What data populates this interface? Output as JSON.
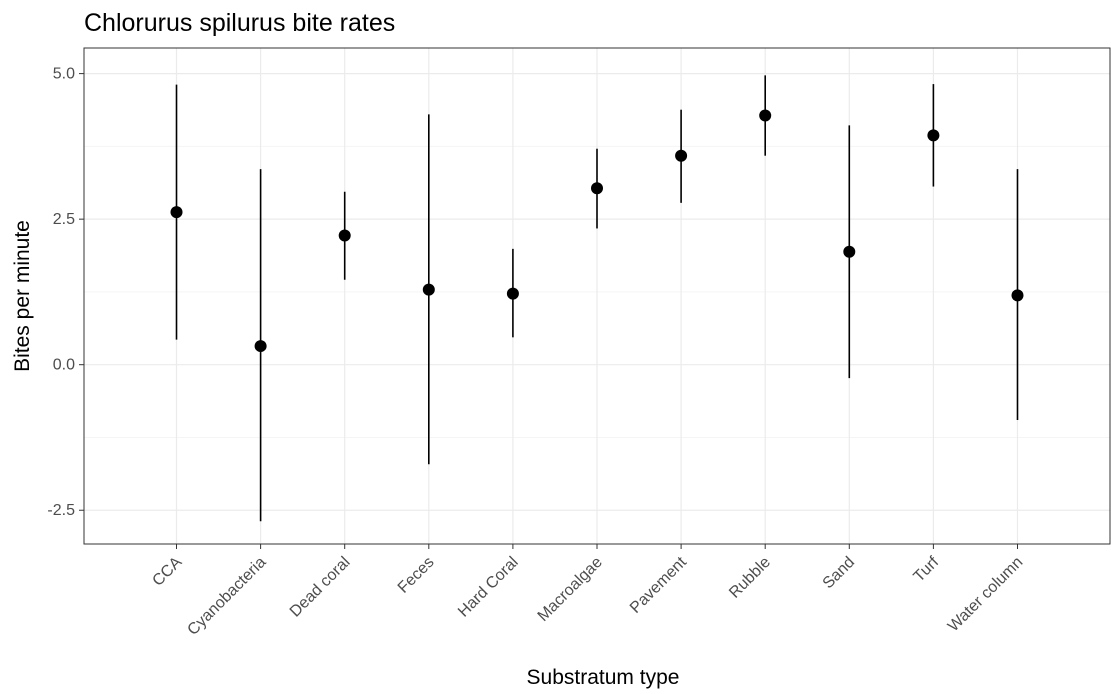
{
  "chart_data": {
    "type": "scatter",
    "title": "Chlorurus spilurus bite rates",
    "xlabel": "Substratum type",
    "ylabel": "Bites per minute",
    "categories": [
      "CCA",
      "Cyanobacteria",
      "Dead coral",
      "Feces",
      "Hard Coral",
      "Macroalgae",
      "Pavement",
      "Rubble",
      "Sand",
      "Turf",
      "Water column"
    ],
    "series": [
      {
        "values": [
          2.62,
          0.32,
          2.22,
          1.29,
          1.22,
          3.03,
          3.59,
          4.28,
          1.94,
          3.94,
          1.19
        ],
        "lower": [
          0.43,
          -2.69,
          1.46,
          -1.71,
          0.47,
          2.34,
          2.78,
          3.59,
          -0.23,
          3.06,
          -0.95
        ],
        "upper": [
          4.81,
          3.36,
          2.97,
          4.3,
          1.99,
          3.71,
          4.38,
          4.97,
          4.11,
          4.82,
          3.36
        ]
      }
    ],
    "ylim": [
      -3.08,
      5.44
    ],
    "yticks": [
      -2.5,
      0.0,
      2.5,
      5.0
    ],
    "ytick_labels": [
      "-2.5",
      "0.0",
      "2.5",
      "5.0"
    ],
    "grid": true,
    "legend": "none",
    "colors": {
      "point": "#000000",
      "errorbar": "#000000",
      "grid_major": "#ebebeb",
      "grid_minor": "#f5f5f5",
      "panel_border": "#333333"
    }
  }
}
